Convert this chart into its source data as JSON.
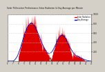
{
  "title": "Solar PV/Inverter Performance Solar Radiation & Day Average per Minute",
  "bg_color": "#d4d0c8",
  "plot_bg": "#ffffff",
  "bar_color": "#dd0000",
  "avg_color": "#0000cc",
  "grid_color": "#aaaaaa",
  "ylim": [
    0,
    1000
  ],
  "yticks": [
    200,
    400,
    600,
    800,
    1000
  ],
  "legend_items": [
    "Solar Radiation",
    "Day Average"
  ],
  "legend_colors": [
    "#dd0000",
    "#0000cc"
  ],
  "n_points": 480,
  "seed": 7
}
